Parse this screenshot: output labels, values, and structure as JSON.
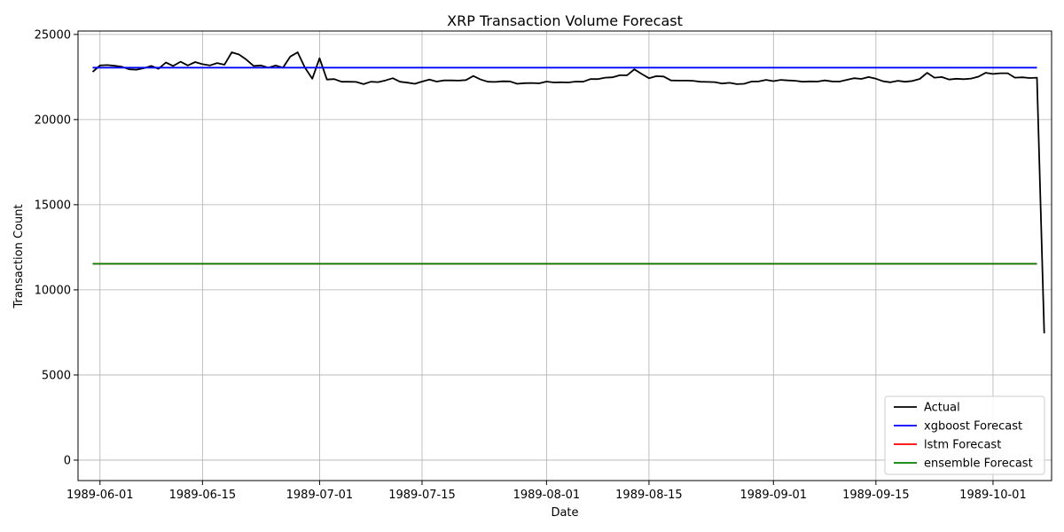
{
  "chart_data": {
    "type": "line",
    "title": "XRP Transaction Volume Forecast",
    "xlabel": "Date",
    "ylabel": "Transaction Count",
    "x_start": "1989-05-31",
    "xlim": [
      "1989-05-29",
      "1989-10-09"
    ],
    "ylim": [
      -1200,
      25200
    ],
    "x_ticks": [
      "1989-06-01",
      "1989-06-15",
      "1989-07-01",
      "1989-07-15",
      "1989-08-01",
      "1989-08-15",
      "1989-09-01",
      "1989-09-15",
      "1989-10-01"
    ],
    "y_ticks": [
      0,
      5000,
      10000,
      15000,
      20000,
      25000
    ],
    "grid": true,
    "legend_position": "lower-right",
    "series": [
      {
        "name": "Actual",
        "color": "#000000",
        "values": [
          22800,
          23180,
          23200,
          23160,
          23100,
          22950,
          22930,
          23020,
          23150,
          22980,
          23350,
          23150,
          23400,
          23180,
          23380,
          23250,
          23180,
          23320,
          23220,
          23950,
          23820,
          23520,
          23150,
          23180,
          23050,
          23180,
          23050,
          23700,
          23950,
          23050,
          22400,
          23600,
          22350,
          22380,
          22220,
          22220,
          22210,
          22080,
          22220,
          22200,
          22300,
          22430,
          22220,
          22170,
          22100,
          22230,
          22350,
          22230,
          22300,
          22300,
          22290,
          22320,
          22560,
          22350,
          22220,
          22210,
          22250,
          22240,
          22100,
          22140,
          22150,
          22130,
          22230,
          22180,
          22190,
          22180,
          22230,
          22220,
          22380,
          22380,
          22460,
          22480,
          22600,
          22600,
          22950,
          22680,
          22430,
          22550,
          22530,
          22300,
          22290,
          22290,
          22280,
          22220,
          22210,
          22200,
          22120,
          22160,
          22080,
          22100,
          22230,
          22240,
          22330,
          22260,
          22330,
          22300,
          22280,
          22220,
          22240,
          22230,
          22300,
          22240,
          22230,
          22330,
          22430,
          22390,
          22500,
          22400,
          22250,
          22190,
          22280,
          22220,
          22270,
          22390,
          22750,
          22460,
          22500,
          22350,
          22400,
          22370,
          22410,
          22520,
          22750,
          22680,
          22720,
          22720,
          22460,
          22480,
          22440,
          22460,
          7450
        ]
      },
      {
        "name": "xgboost Forecast",
        "color": "#0000ff",
        "constant": 23050
      },
      {
        "name": "lstm Forecast",
        "color": "#ff0000",
        "constant": 11530
      },
      {
        "name": "ensemble Forecast",
        "color": "#008000",
        "constant": 11530
      }
    ]
  }
}
